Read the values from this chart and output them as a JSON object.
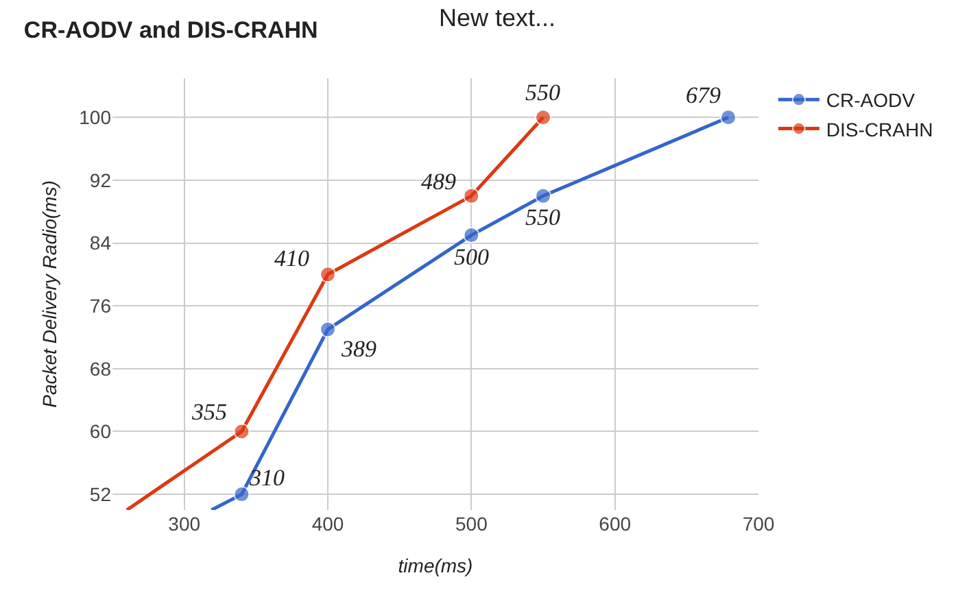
{
  "chart_data": {
    "type": "line",
    "title": "CR-AODV and DIS-CRAHN",
    "xlabel": "time(ms)",
    "ylabel": "Packet Delivery Radio(ms)",
    "annotations": [
      "New text...",
      {
        "text": "310",
        "x": 340,
        "y": 52
      },
      {
        "text": "389",
        "x": 400,
        "y": 73
      },
      {
        "text": "500",
        "x": 500,
        "y": 85
      },
      {
        "text": "550",
        "x": 550,
        "y": 90
      },
      {
        "text": "679",
        "x": 679,
        "y": 100
      },
      {
        "text": "355",
        "x": 340,
        "y": 60
      },
      {
        "text": "410",
        "x": 400,
        "y": 80
      },
      {
        "text": "489",
        "x": 500,
        "y": 90
      },
      {
        "text": "550",
        "x": 550,
        "y": 100
      }
    ],
    "series": [
      {
        "name": "CR-AODV",
        "color": "#3366cc",
        "x": [
          319,
          340,
          400,
          500,
          550,
          679
        ],
        "values": [
          50,
          52,
          73,
          85,
          90,
          100
        ]
      },
      {
        "name": "DIS-CRAHN",
        "color": "#dc3912",
        "x": [
          260,
          340,
          400,
          500,
          550
        ],
        "values": [
          50,
          60,
          80,
          90,
          100
        ]
      }
    ],
    "xlim": [
      250,
      700
    ],
    "xticks": [
      300,
      400,
      500,
      600,
      700
    ],
    "ylim": [
      50,
      105
    ],
    "yticks": [
      52,
      60,
      68,
      76,
      84,
      92,
      100
    ],
    "grid": true,
    "legend": "top right",
    "marker": "circle",
    "line_style": "solid"
  }
}
